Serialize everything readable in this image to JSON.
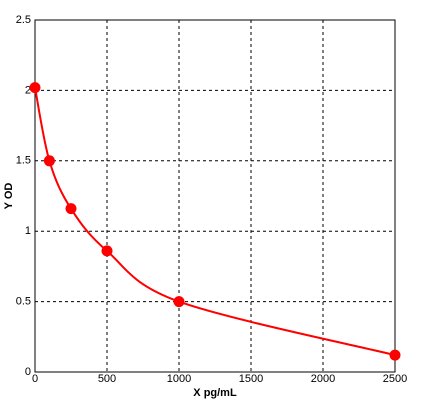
{
  "chart_data": {
    "type": "line",
    "x_label": "X pg/mL",
    "y_label": "Y OD",
    "x": [
      0,
      100,
      250,
      500,
      1000,
      2500
    ],
    "series": [
      {
        "color": "#ff0000",
        "values": [
          2.02,
          1.5,
          1.16,
          0.86,
          0.5,
          0.12
        ]
      }
    ],
    "xlim": [
      0,
      2500
    ],
    "xticks": [
      0,
      500,
      1000,
      1500,
      2000,
      2500
    ],
    "ylim": [
      0,
      2.5
    ],
    "yticks": [
      0,
      0.5,
      1,
      1.5,
      2,
      2.5
    ],
    "grid": true
  }
}
